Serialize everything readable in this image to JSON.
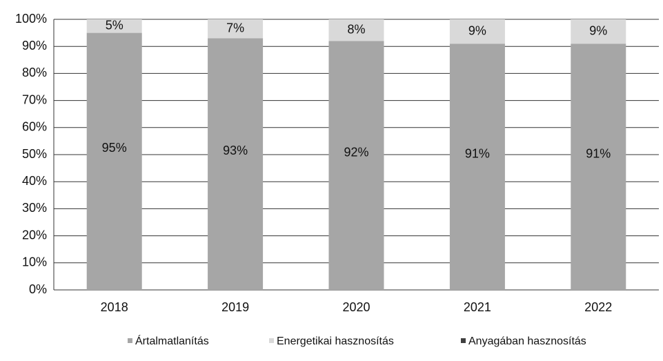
{
  "chart_data": {
    "type": "stacked_bar",
    "categories": [
      "2018",
      "2019",
      "2020",
      "2021",
      "2022"
    ],
    "series": [
      {
        "name": "Ártalmatlanítás",
        "color": "#a6a6a6",
        "values": [
          95,
          93,
          92,
          91,
          91
        ],
        "value_labels": [
          "95%",
          "93%",
          "92%",
          "91%",
          "91%"
        ]
      },
      {
        "name": "Energetikai hasznosítás",
        "color": "#d9d9d9",
        "values": [
          5,
          7,
          8,
          9,
          9
        ],
        "value_labels": [
          "5%",
          "7%",
          "8%",
          "9%",
          "9%"
        ]
      },
      {
        "name": "Anyagában hasznosítás",
        "color": "#404040",
        "values": [
          0,
          0,
          0,
          0,
          0
        ]
      }
    ],
    "ylim": [
      0,
      100
    ],
    "yticks": [
      {
        "value": 0,
        "label": "0%"
      },
      {
        "value": 10,
        "label": "10%"
      },
      {
        "value": 20,
        "label": "20%"
      },
      {
        "value": 30,
        "label": "30%"
      },
      {
        "value": 40,
        "label": "40%"
      },
      {
        "value": 50,
        "label": "50%"
      },
      {
        "value": 60,
        "label": "60%"
      },
      {
        "value": 70,
        "label": "70%"
      },
      {
        "value": 80,
        "label": "80%"
      },
      {
        "value": 90,
        "label": "90%"
      },
      {
        "value": 100,
        "label": "100%"
      }
    ],
    "grid": true
  }
}
